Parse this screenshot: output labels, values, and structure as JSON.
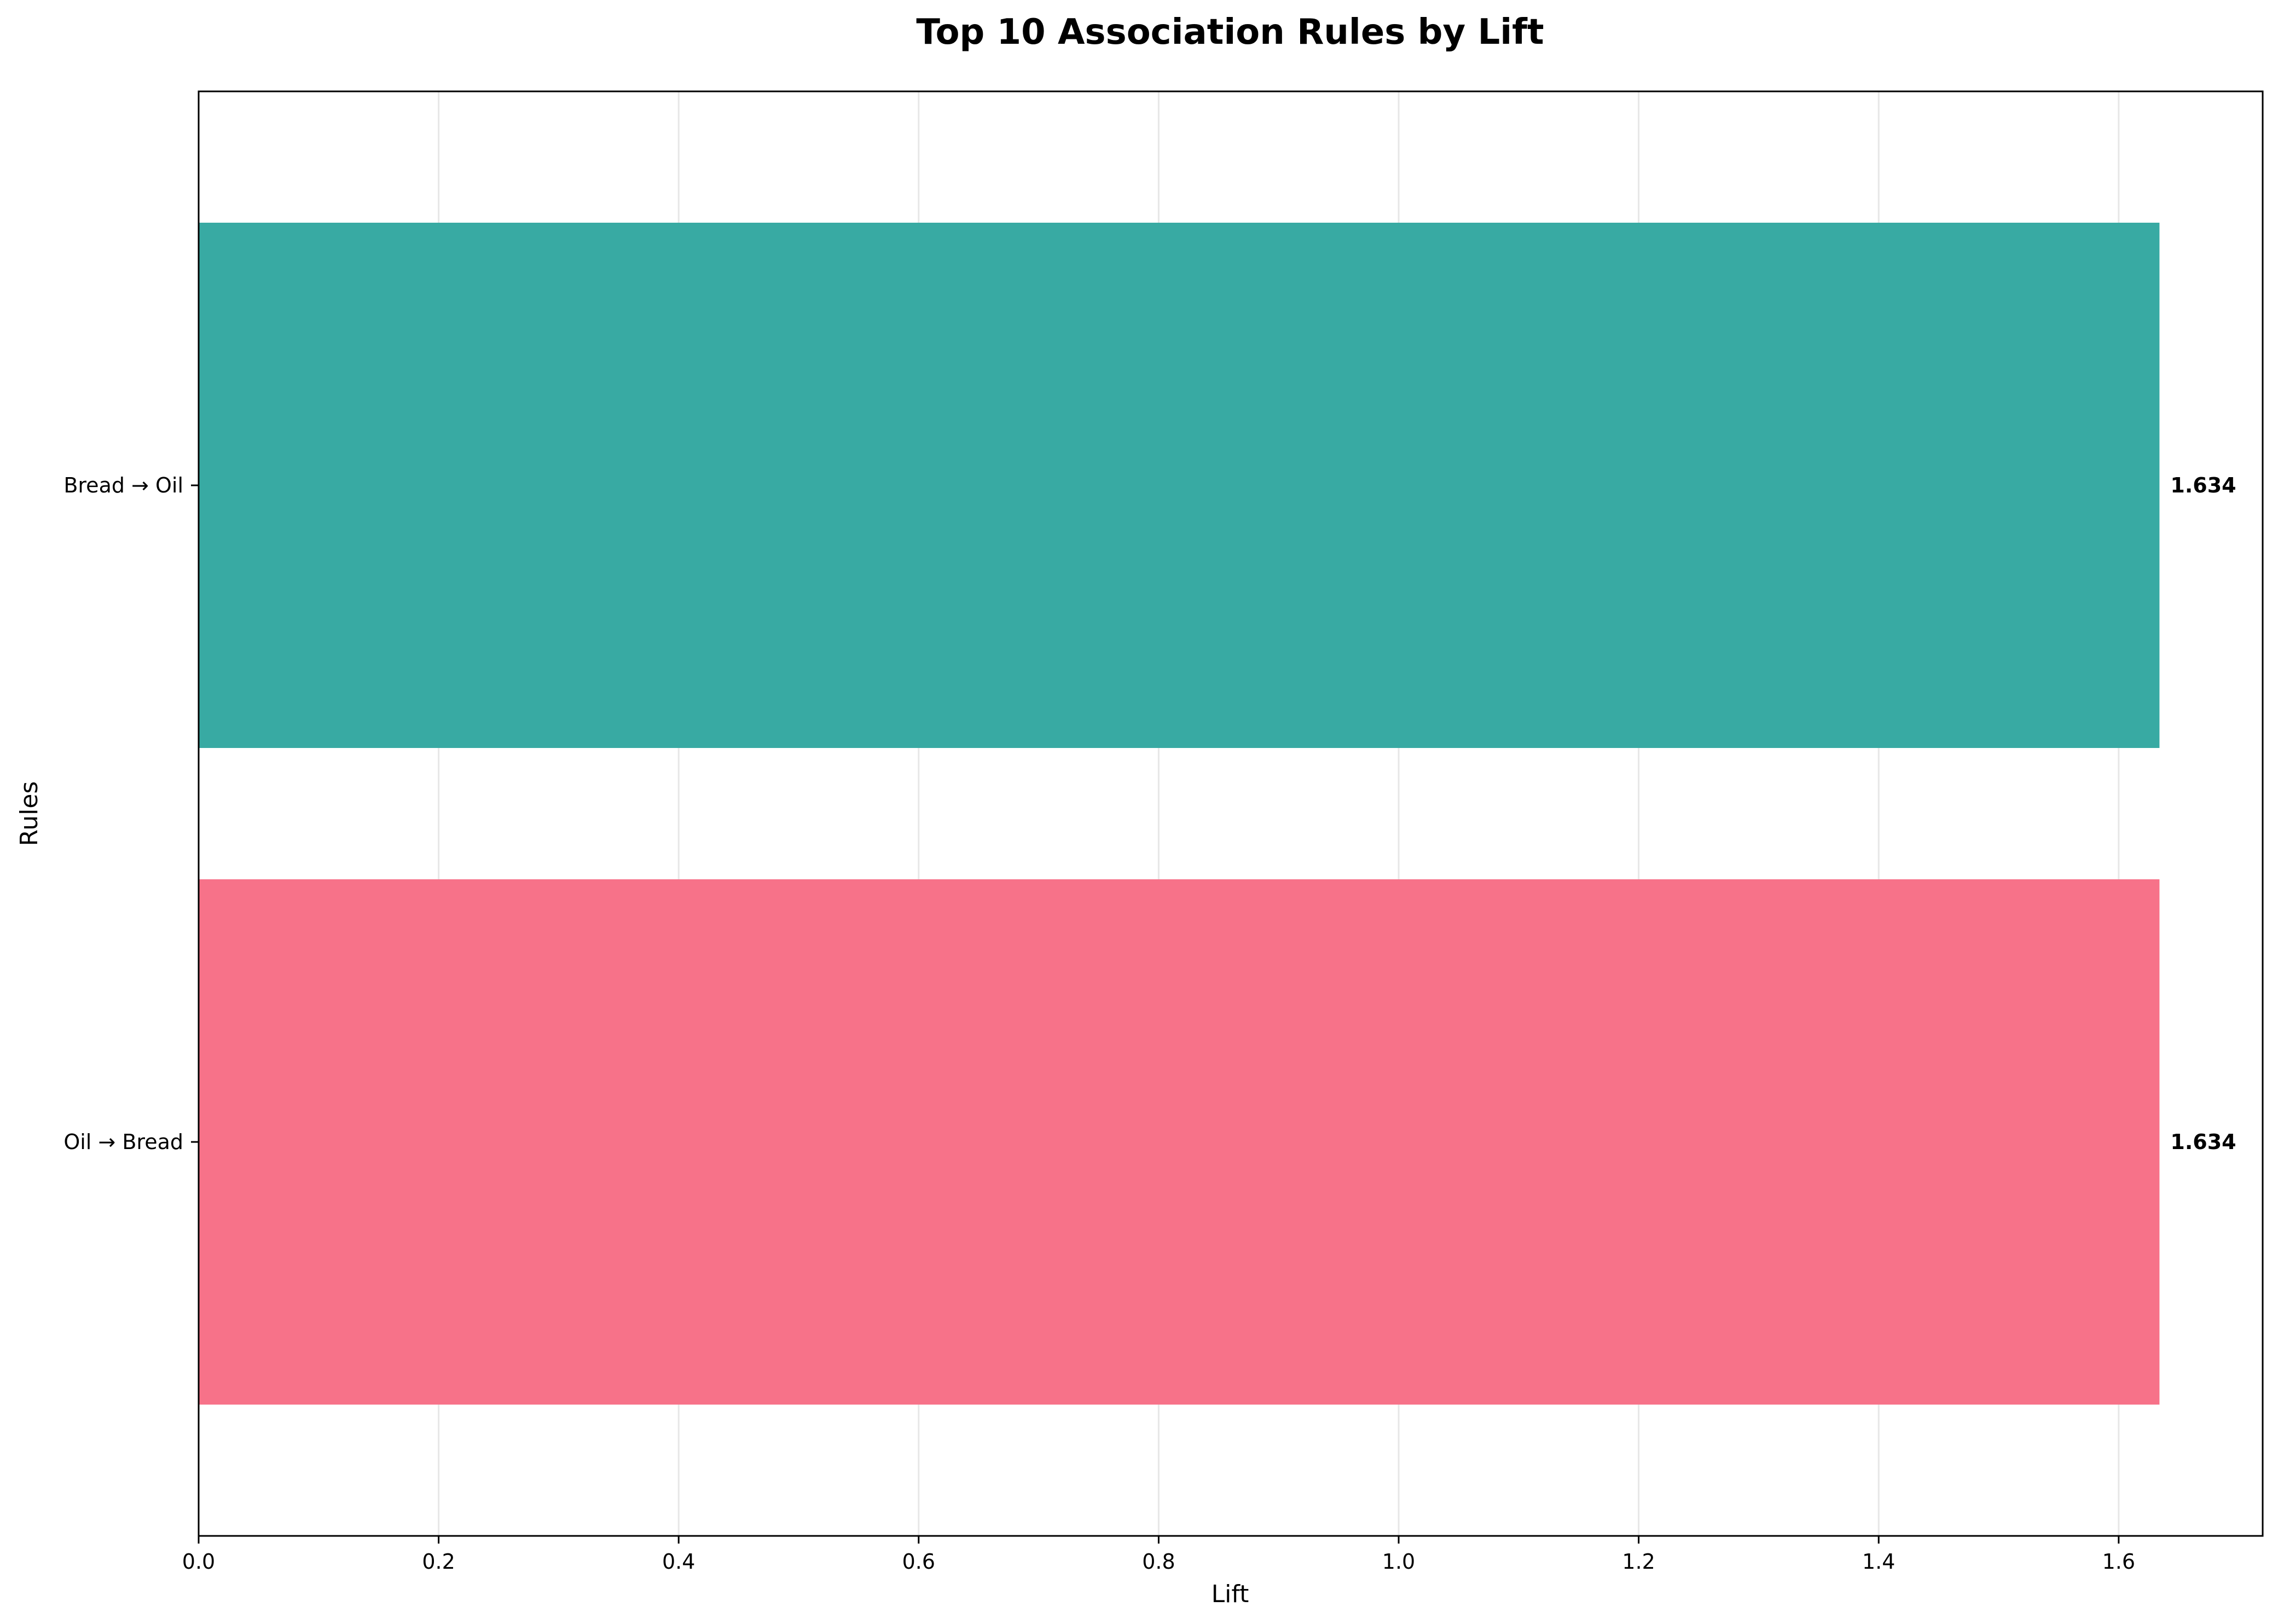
{
  "chart_data": {
    "type": "bar",
    "orientation": "horizontal",
    "title": "Top 10 Association Rules by Lift",
    "xlabel": "Lift",
    "ylabel": "Rules",
    "xlim": [
      0,
      1.72
    ],
    "xticks": [
      0.0,
      0.2,
      0.4,
      0.6,
      0.8,
      1.0,
      1.2,
      1.4,
      1.6
    ],
    "xtick_labels": [
      "0.0",
      "0.2",
      "0.4",
      "0.6",
      "0.8",
      "1.0",
      "1.2",
      "1.4",
      "1.6"
    ],
    "grid": "vertical",
    "categories": [
      "Bread → Oil",
      "Oil → Bread"
    ],
    "values": [
      1.634,
      1.634
    ],
    "value_labels": [
      "1.634",
      "1.634"
    ],
    "colors": [
      "#38aaa3",
      "#f77289"
    ]
  }
}
